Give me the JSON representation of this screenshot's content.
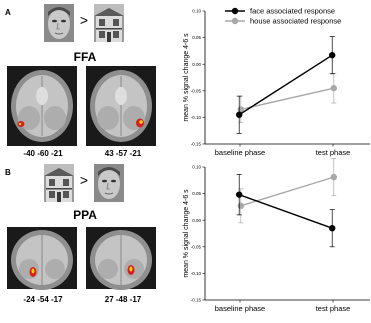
{
  "panels": [
    {
      "letter": "A",
      "region": "FFA",
      "comparison": ">",
      "coords": [
        "-40 -60 -21",
        "43 -57 -21"
      ]
    },
    {
      "letter": "B",
      "region": "PPA",
      "comparison": ">",
      "coords": [
        "-24 -54 -17",
        "27 -48 -17"
      ]
    }
  ],
  "colors": {
    "face": "#000000",
    "house": "#a8a8a8",
    "activation_red": "#d81e1e",
    "activation_yellow": "#f5d800"
  },
  "icons": [
    "face-photo",
    "house-photo",
    "brain-slice"
  ],
  "chart_data": [
    {
      "type": "line",
      "categories": [
        "baseline phase",
        "test phase"
      ],
      "ylabel": "mean % signal change 4-6 s",
      "ylim": [
        -0.15,
        0.1
      ],
      "yticks": [
        "0.10",
        "0.05",
        "0.00",
        "-0.05",
        "-0.10",
        "-0.15"
      ],
      "legend": "top",
      "grid": false,
      "series": [
        {
          "name": "face associated response",
          "values": [
            -0.095,
            0.017
          ],
          "err": [
            0.035,
            0.035
          ]
        },
        {
          "name": "house associated response",
          "values": [
            -0.085,
            -0.045
          ],
          "err": [
            0.025,
            0.028
          ]
        }
      ]
    },
    {
      "type": "line",
      "categories": [
        "baseline phase",
        "test phase"
      ],
      "ylabel": "mean % signal change 4-6 s",
      "ylim": [
        -0.15,
        0.1
      ],
      "yticks": [
        "0.10",
        "0.05",
        "0.00",
        "-0.05",
        "-0.10",
        "-0.15"
      ],
      "legend": "none",
      "grid": false,
      "series": [
        {
          "name": "face associated response",
          "values": [
            0.048,
            -0.015
          ],
          "err": [
            0.038,
            0.035
          ]
        },
        {
          "name": "house associated response",
          "values": [
            0.027,
            0.081
          ],
          "err": [
            0.032,
            0.035
          ]
        }
      ]
    }
  ]
}
